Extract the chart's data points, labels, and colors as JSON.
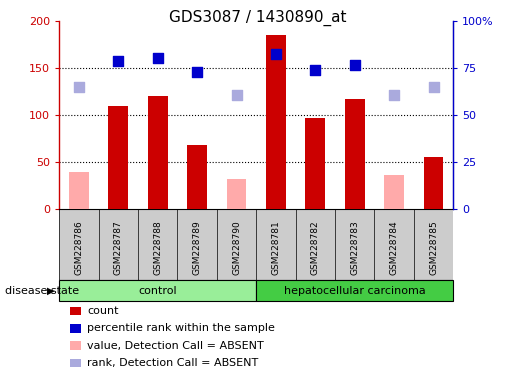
{
  "title": "GDS3087 / 1430890_at",
  "samples": [
    "GSM228786",
    "GSM228787",
    "GSM228788",
    "GSM228789",
    "GSM228790",
    "GSM228781",
    "GSM228782",
    "GSM228783",
    "GSM228784",
    "GSM228785"
  ],
  "groups": [
    "control",
    "control",
    "control",
    "control",
    "control",
    "hepatocellular carcinoma",
    "hepatocellular carcinoma",
    "hepatocellular carcinoma",
    "hepatocellular carcinoma",
    "hepatocellular carcinoma"
  ],
  "count_values": [
    null,
    110,
    120,
    68,
    null,
    185,
    97,
    117,
    null,
    56
  ],
  "count_absent": [
    40,
    null,
    null,
    null,
    32,
    null,
    null,
    null,
    36,
    null
  ],
  "percentile_rank": [
    null,
    158,
    161,
    146,
    null,
    165,
    148,
    153,
    null,
    null
  ],
  "rank_absent": [
    130,
    null,
    null,
    null,
    122,
    null,
    null,
    null,
    122,
    130
  ],
  "ylim_left": [
    0,
    200
  ],
  "ylim_right": [
    0,
    100
  ],
  "yticks_left": [
    0,
    50,
    100,
    150,
    200
  ],
  "yticks_right": [
    0,
    25,
    50,
    75,
    100
  ],
  "yticklabels_right": [
    "0",
    "25",
    "50",
    "75",
    "100%"
  ],
  "bar_color_count": "#cc0000",
  "bar_color_absent": "#ffaaaa",
  "dot_color_rank": "#0000cc",
  "dot_color_rank_absent": "#aaaadd",
  "control_color": "#99ee99",
  "carcinoma_color": "#44cc44",
  "group_label_control": "control",
  "group_label_carcinoma": "hepatocellular carcinoma",
  "disease_state_label": "disease state",
  "legend_items": [
    {
      "color": "#cc0000",
      "label": "count"
    },
    {
      "color": "#0000cc",
      "label": "percentile rank within the sample"
    },
    {
      "color": "#ffaaaa",
      "label": "value, Detection Call = ABSENT"
    },
    {
      "color": "#aaaadd",
      "label": "rank, Detection Call = ABSENT"
    }
  ],
  "bar_width": 0.5,
  "dot_size": 55,
  "n_control": 5,
  "n_carcinoma": 5
}
